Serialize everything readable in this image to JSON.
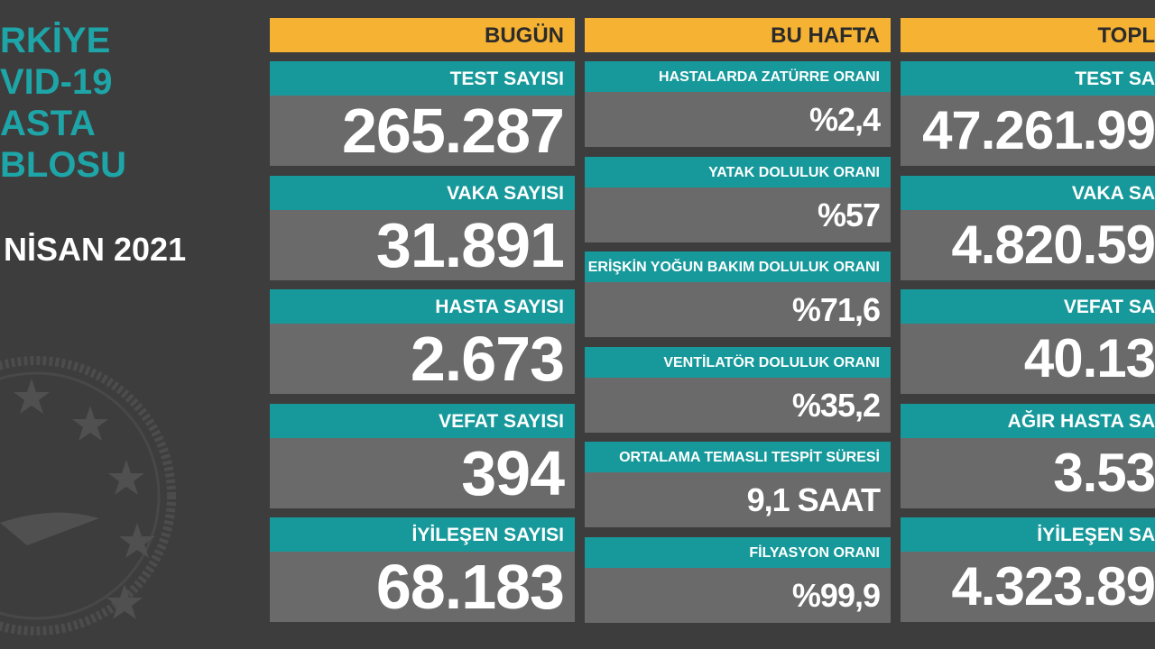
{
  "sidebar": {
    "title_lines": [
      "RKİYE",
      "VID-19",
      "ASTA",
      "BLOSU"
    ],
    "date": "NİSAN 2021"
  },
  "columns": [
    {
      "header": "BUGÜN",
      "cards": [
        {
          "label": "TEST SAYISI",
          "value": "265.287"
        },
        {
          "label": "VAKA SAYISI",
          "value": "31.891"
        },
        {
          "label": "HASTA SAYISI",
          "value": "2.673"
        },
        {
          "label": "VEFAT SAYISI",
          "value": "394"
        },
        {
          "label": "İYİLEŞEN SAYISI",
          "value": "68.183"
        }
      ]
    },
    {
      "header": "BU HAFTA",
      "cards": [
        {
          "label": "HASTALARDA ZATÜRRE ORANI",
          "value": "%2,4"
        },
        {
          "label": "YATAK DOLULUK ORANI",
          "value": "%57"
        },
        {
          "label": "ERİŞKİN YOĞUN BAKIM DOLULUK ORANI",
          "value": "%71,6"
        },
        {
          "label": "VENTİLATÖR DOLULUK ORANI",
          "value": "%35,2"
        },
        {
          "label": "ORTALAMA TEMASLI TESPİT SÜRESİ",
          "value": "9,1 SAAT"
        },
        {
          "label": "FİLYASYON ORANI",
          "value": "%99,9"
        }
      ]
    },
    {
      "header": "TOPL",
      "cards": [
        {
          "label": "TEST SA",
          "value": "47.261.99"
        },
        {
          "label": "VAKA SA",
          "value": "4.820.59"
        },
        {
          "label": "VEFAT SA",
          "value": "40.13"
        },
        {
          "label": "AĞIR HASTA SA",
          "value": "3.53"
        },
        {
          "label": "İYİLEŞEN SA",
          "value": "4.323.89"
        }
      ]
    }
  ]
}
